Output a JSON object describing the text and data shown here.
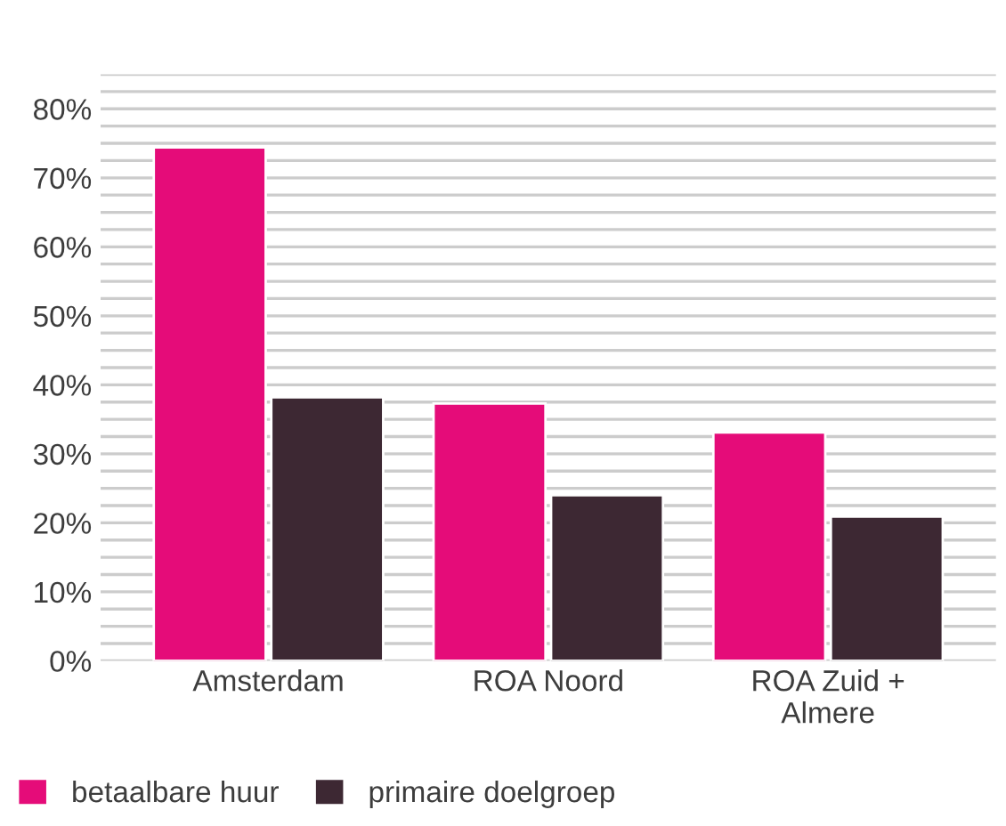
{
  "chart_data": {
    "type": "bar",
    "categories": [
      "Amsterdam",
      "ROA Noord",
      "ROA Zuid +\nAlmere"
    ],
    "series": [
      {
        "name": "betaalbare huur",
        "color": "#e50c79",
        "values": [
          74.4,
          37.3,
          33.1
        ]
      },
      {
        "name": "primaire doelgroep",
        "color": "#3d2833",
        "values": [
          38.2,
          24.0,
          20.9
        ]
      }
    ],
    "ylim": [
      0,
      85
    ],
    "yticks": [
      {
        "value": 0,
        "label": "0%"
      },
      {
        "value": 2.5,
        "label": null
      },
      {
        "value": 5,
        "label": null
      },
      {
        "value": 7.5,
        "label": null
      },
      {
        "value": 10,
        "label": "10%"
      },
      {
        "value": 12.5,
        "label": null
      },
      {
        "value": 15,
        "label": null
      },
      {
        "value": 17.5,
        "label": null
      },
      {
        "value": 20,
        "label": "20%"
      },
      {
        "value": 22.5,
        "label": null
      },
      {
        "value": 25,
        "label": null
      },
      {
        "value": 27.5,
        "label": null
      },
      {
        "value": 30,
        "label": "30%"
      },
      {
        "value": 32.5,
        "label": null
      },
      {
        "value": 35,
        "label": null
      },
      {
        "value": 37.5,
        "label": null
      },
      {
        "value": 40,
        "label": "40%"
      },
      {
        "value": 42.5,
        "label": null
      },
      {
        "value": 45,
        "label": null
      },
      {
        "value": 47.5,
        "label": null
      },
      {
        "value": 50,
        "label": "50%"
      },
      {
        "value": 52.5,
        "label": null
      },
      {
        "value": 55,
        "label": null
      },
      {
        "value": 57.5,
        "label": null
      },
      {
        "value": 60,
        "label": "60%"
      },
      {
        "value": 62.5,
        "label": null
      },
      {
        "value": 65,
        "label": null
      },
      {
        "value": 67.5,
        "label": null
      },
      {
        "value": 70,
        "label": "70%"
      },
      {
        "value": 72.5,
        "label": null
      },
      {
        "value": 75,
        "label": null
      },
      {
        "value": 77.5,
        "label": null
      },
      {
        "value": 80,
        "label": "80%"
      },
      {
        "value": 82.5,
        "label": null
      },
      {
        "value": 85,
        "label": null
      }
    ],
    "grid": "y",
    "legend": "bottom left"
  }
}
